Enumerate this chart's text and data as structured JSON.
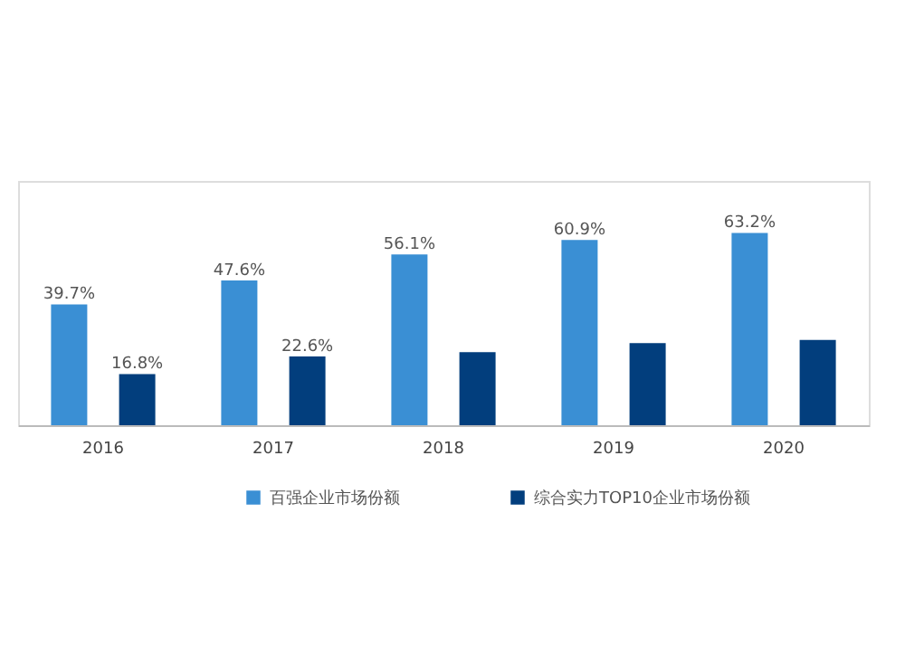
{
  "chart_data": {
    "type": "bar",
    "categories": [
      "2016",
      "2017",
      "2018",
      "2019",
      "2020"
    ],
    "series": [
      {
        "name": "百强企业市场份额",
        "color": "#3a8fd4",
        "values": [
          39.7,
          47.6,
          56.1,
          60.9,
          63.2
        ],
        "value_labels": [
          "39.7%",
          "47.6%",
          "56.1%",
          "60.9%",
          "63.2%"
        ]
      },
      {
        "name": "综合实力TOP10企业市场份额",
        "color": "#023e7d",
        "values": [
          16.8,
          22.6,
          24.0,
          27.0,
          28.0
        ],
        "value_labels": [
          "16.8%",
          "22.6%",
          null,
          null,
          null
        ]
      }
    ],
    "tick_labels": "x",
    "legend": "bottom"
  }
}
